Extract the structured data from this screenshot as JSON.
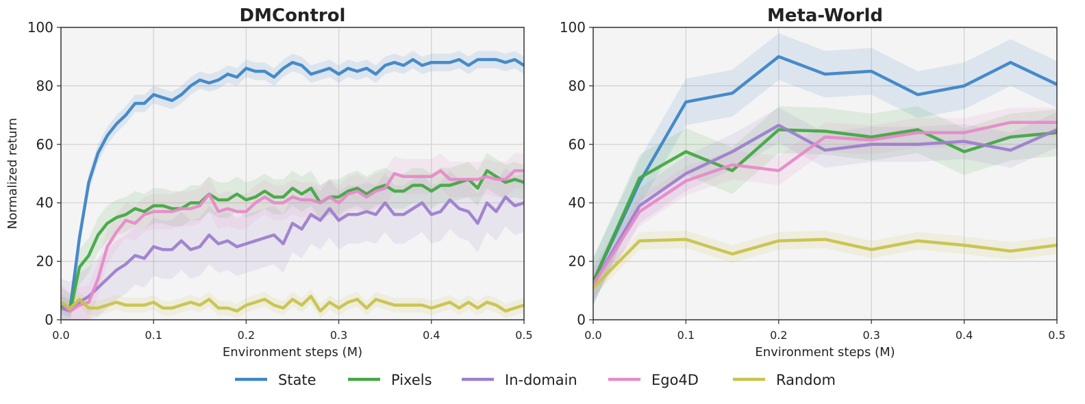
{
  "chart_data": [
    {
      "type": "line",
      "title": "DMControl",
      "xlabel": "Environment steps (M)",
      "ylabel": "Normalized return",
      "xlim": [
        0,
        0.5
      ],
      "ylim": [
        0,
        100
      ],
      "xticks": [
        "0.0",
        "0.1",
        "0.2",
        "0.3",
        "0.4",
        "0.5"
      ],
      "yticks": [
        "0",
        "20",
        "40",
        "60",
        "80",
        "100"
      ],
      "grid": true,
      "x": [
        0.0,
        0.01,
        0.02,
        0.03,
        0.04,
        0.05,
        0.06,
        0.07,
        0.08,
        0.09,
        0.1,
        0.11,
        0.12,
        0.13,
        0.14,
        0.15,
        0.16,
        0.17,
        0.18,
        0.19,
        0.2,
        0.21,
        0.22,
        0.23,
        0.24,
        0.25,
        0.26,
        0.27,
        0.28,
        0.29,
        0.3,
        0.31,
        0.32,
        0.33,
        0.34,
        0.35,
        0.36,
        0.37,
        0.38,
        0.39,
        0.4,
        0.41,
        0.42,
        0.43,
        0.44,
        0.45,
        0.46,
        0.47,
        0.48,
        0.49,
        0.5
      ],
      "series": [
        {
          "name": "State",
          "color": "#3d85c6",
          "band": 3,
          "values": [
            5,
            4,
            28,
            47,
            57,
            63,
            67,
            70,
            74,
            74,
            77,
            76,
            75,
            77,
            80,
            82,
            81,
            82,
            84,
            83,
            86,
            85,
            85,
            83,
            86,
            88,
            87,
            84,
            85,
            86,
            84,
            86,
            85,
            86,
            84,
            87,
            88,
            87,
            89,
            87,
            88,
            88,
            88,
            89,
            87,
            89,
            89,
            89,
            88,
            89,
            87
          ]
        },
        {
          "name": "Pixels",
          "color": "#43a843",
          "band": 6,
          "values": [
            5,
            3,
            18,
            22,
            29,
            33,
            35,
            36,
            38,
            37,
            39,
            39,
            38,
            38,
            40,
            40,
            43,
            41,
            41,
            43,
            41,
            42,
            44,
            42,
            42,
            45,
            43,
            45,
            40,
            42,
            42,
            44,
            45,
            43,
            45,
            46,
            44,
            44,
            46,
            46,
            44,
            46,
            46,
            47,
            48,
            45,
            51,
            49,
            47,
            48,
            47
          ]
        },
        {
          "name": "In-domain",
          "color": "#9d7fcc",
          "band": 10,
          "values": [
            4,
            3,
            6,
            8,
            11,
            14,
            17,
            19,
            22,
            21,
            25,
            24,
            24,
            27,
            24,
            25,
            29,
            26,
            27,
            25,
            26,
            27,
            28,
            29,
            26,
            33,
            31,
            36,
            34,
            38,
            34,
            36,
            36,
            37,
            36,
            40,
            36,
            36,
            38,
            40,
            36,
            37,
            41,
            38,
            37,
            33,
            40,
            37,
            42,
            39,
            40
          ]
        },
        {
          "name": "Ego4D",
          "color": "#e68ac9",
          "band": 6,
          "values": [
            6,
            3,
            5,
            6,
            14,
            25,
            30,
            34,
            33,
            36,
            37,
            37,
            37,
            38,
            38,
            39,
            43,
            37,
            38,
            37,
            37,
            40,
            42,
            40,
            40,
            42,
            41,
            41,
            40,
            42,
            40,
            43,
            44,
            42,
            44,
            45,
            50,
            49,
            49,
            49,
            49,
            51,
            48,
            48,
            48,
            48,
            49,
            48,
            48,
            51,
            51
          ]
        },
        {
          "name": "Random",
          "color": "#c8c34b",
          "band": 2.5,
          "values": [
            6,
            4,
            7,
            4,
            4,
            5,
            6,
            5,
            5,
            5,
            6,
            4,
            4,
            5,
            6,
            5,
            7,
            4,
            4,
            3,
            5,
            6,
            7,
            5,
            4,
            7,
            5,
            8,
            3,
            6,
            4,
            6,
            7,
            4,
            7,
            6,
            5,
            5,
            5,
            5,
            4,
            5,
            6,
            4,
            6,
            4,
            6,
            5,
            3,
            4,
            5
          ]
        }
      ]
    },
    {
      "type": "line",
      "title": "Meta-World",
      "xlabel": "Environment steps (M)",
      "ylabel": "",
      "xlim": [
        0,
        0.5
      ],
      "ylim": [
        0,
        100
      ],
      "xticks": [
        "0.0",
        "0.1",
        "0.2",
        "0.3",
        "0.4",
        "0.5"
      ],
      "yticks": [
        "0",
        "20",
        "40",
        "60",
        "80",
        "100"
      ],
      "grid": true,
      "x": [
        0.0,
        0.05,
        0.1,
        0.15,
        0.2,
        0.25,
        0.3,
        0.35,
        0.4,
        0.45,
        0.5
      ],
      "series": [
        {
          "name": "State",
          "color": "#3d85c6",
          "band": 8,
          "values": [
            13,
            47,
            74.5,
            77.5,
            90,
            84,
            85,
            77,
            80,
            88,
            80.5
          ]
        },
        {
          "name": "Pixels",
          "color": "#43a843",
          "band": 8,
          "values": [
            13,
            48.5,
            57.5,
            51,
            65,
            64.5,
            62.5,
            65,
            57.5,
            62.5,
            64
          ]
        },
        {
          "name": "In-domain",
          "color": "#9d7fcc",
          "band": 6,
          "values": [
            12,
            39,
            50,
            57.5,
            66.5,
            58,
            60,
            60,
            61,
            58,
            65
          ]
        },
        {
          "name": "Ego4D",
          "color": "#e68ac9",
          "band": 5,
          "values": [
            12,
            37,
            47.5,
            53,
            51,
            62.5,
            61.5,
            64,
            64,
            67.5,
            67.5
          ]
        },
        {
          "name": "Random",
          "color": "#c8c34b",
          "band": 3,
          "values": [
            11,
            27,
            27.5,
            22.5,
            27,
            27.5,
            24,
            27,
            25.5,
            23.5,
            25.5
          ]
        }
      ]
    }
  ],
  "legend": {
    "placement": "bottom-center",
    "items": [
      {
        "label": "State",
        "color": "#3d85c6"
      },
      {
        "label": "Pixels",
        "color": "#43a843"
      },
      {
        "label": "In-domain",
        "color": "#9d7fcc"
      },
      {
        "label": "Ego4D",
        "color": "#e68ac9"
      },
      {
        "label": "Random",
        "color": "#c8c34b"
      }
    ]
  }
}
